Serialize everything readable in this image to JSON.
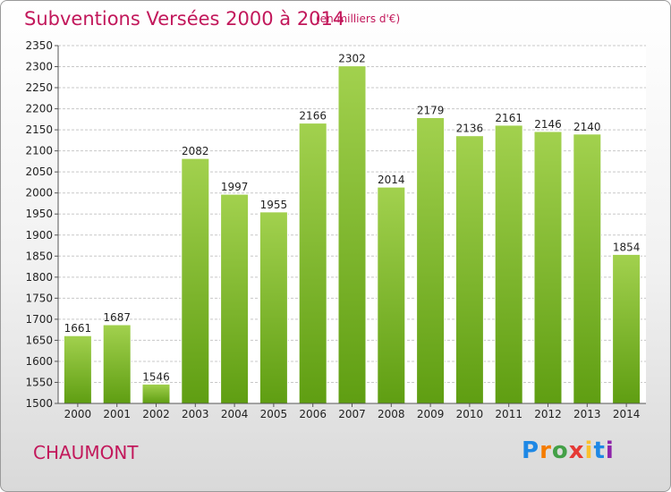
{
  "header": {
    "title": "Subventions Versées 2000 à 2014",
    "unit": "(en milliers d'€)"
  },
  "footer": {
    "commune": "CHAUMONT",
    "logo": "Proxiti"
  },
  "colors": {
    "bar_top": "#a2d14e",
    "bar_bottom": "#5f9e12",
    "title": "#c2185b",
    "grid": "#c8c8c8"
  },
  "chart_data": {
    "type": "bar",
    "title": "Subventions Versées 2000 à 2014",
    "subtitle": "(en milliers d'€)",
    "xlabel": "",
    "ylabel": "",
    "categories": [
      "2000",
      "2001",
      "2002",
      "2003",
      "2004",
      "2005",
      "2006",
      "2007",
      "2008",
      "2009",
      "2010",
      "2011",
      "2012",
      "2013",
      "2014"
    ],
    "values": [
      1661,
      1687,
      1546,
      2082,
      1997,
      1955,
      2166,
      2302,
      2014,
      2179,
      2136,
      2161,
      2146,
      2140,
      1854
    ],
    "ylim": [
      1500,
      2350
    ],
    "ytick_step": 50,
    "grid": true,
    "legend": "none"
  }
}
